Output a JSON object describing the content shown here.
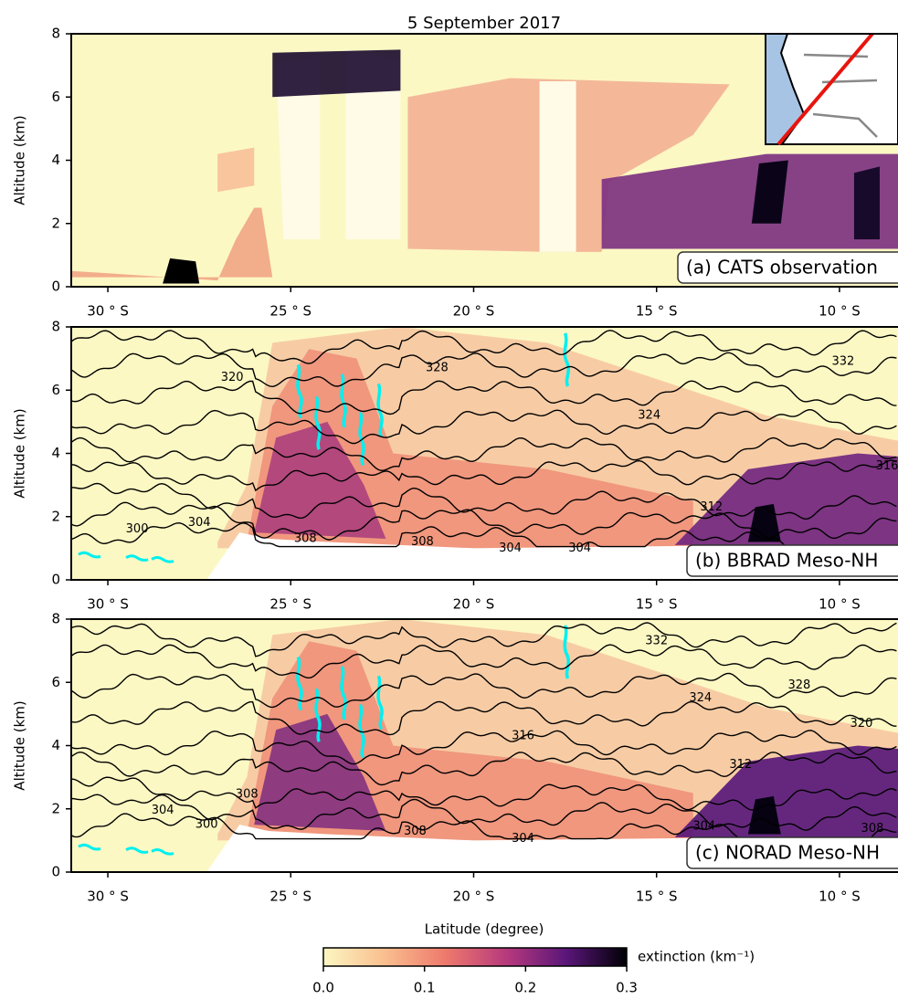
{
  "title": "5 September 2017",
  "xlabel": "Latitude (degree)",
  "chart_data": [
    {
      "type": "heatmap",
      "label": "(a) CATS observation",
      "ylabel": "Altitude (km)",
      "xlim": [
        -31,
        -8.4
      ],
      "ylim": [
        0,
        8
      ],
      "yticks": [
        0,
        2,
        4,
        6,
        8
      ],
      "xticks": [
        {
          "value": -30,
          "label": "30 ° S"
        },
        {
          "value": -25,
          "label": "25 ° S"
        },
        {
          "value": -20,
          "label": "20 ° S"
        },
        {
          "value": -15,
          "label": "15 ° S"
        },
        {
          "value": -10,
          "label": "10 ° S"
        }
      ]
    },
    {
      "type": "heatmap",
      "label": "(b) BBRAD Meso-NH",
      "ylabel": "Altitude (km)",
      "xlim": [
        -31,
        -8.4
      ],
      "ylim": [
        0,
        8
      ],
      "yticks": [
        0,
        2,
        4,
        6,
        8
      ],
      "xticks": [
        {
          "value": -30,
          "label": "30 ° S"
        },
        {
          "value": -25,
          "label": "25 ° S"
        },
        {
          "value": -20,
          "label": "20 ° S"
        },
        {
          "value": -15,
          "label": "15 ° S"
        },
        {
          "value": -10,
          "label": "10 ° S"
        }
      ],
      "contour_labels": [
        "320",
        "328",
        "332",
        "324",
        "316",
        "312",
        "300",
        "304",
        "308",
        "308",
        "304",
        "304"
      ]
    },
    {
      "type": "heatmap",
      "label": "(c) NORAD Meso-NH",
      "ylabel": "Altitude (km)",
      "xlim": [
        -31,
        -8.4
      ],
      "ylim": [
        0,
        8
      ],
      "yticks": [
        0,
        2,
        4,
        6,
        8
      ],
      "xticks": [
        {
          "value": -30,
          "label": "30 ° S"
        },
        {
          "value": -25,
          "label": "25 ° S"
        },
        {
          "value": -20,
          "label": "20 ° S"
        },
        {
          "value": -15,
          "label": "15 ° S"
        },
        {
          "value": -10,
          "label": "10 ° S"
        }
      ],
      "contour_labels": [
        "332",
        "328",
        "324",
        "316",
        "320",
        "312",
        "308",
        "304",
        "300",
        "308",
        "304",
        "304",
        "308"
      ]
    }
  ],
  "colorbar": {
    "label": "extinction (km⁻¹)",
    "lim": [
      0,
      0.3
    ],
    "ticks": [
      {
        "value": 0,
        "label": "0.0"
      },
      0.1,
      0.2,
      0.3
    ]
  }
}
